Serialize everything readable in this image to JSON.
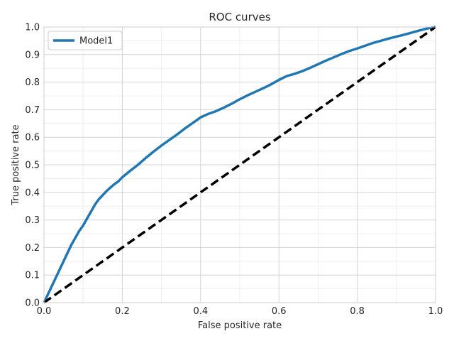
{
  "chart_data": {
    "type": "line",
    "title": "ROC curves",
    "xlabel": "False positive rate",
    "ylabel": "True positive rate",
    "xlim": [
      0.0,
      1.0
    ],
    "ylim": [
      0.0,
      1.0
    ],
    "x_ticks": [
      "0.0",
      "0.2",
      "0.4",
      "0.6",
      "0.8",
      "1.0"
    ],
    "y_ticks": [
      "0.0",
      "0.1",
      "0.2",
      "0.3",
      "0.4",
      "0.5",
      "0.6",
      "0.7",
      "0.8",
      "0.9",
      "1.0"
    ],
    "grid": true,
    "legend_position": "top-left",
    "series": [
      {
        "name": "Model1",
        "color": "#1f77b4",
        "style": "solid",
        "x": [
          0.0,
          0.01,
          0.02,
          0.03,
          0.04,
          0.05,
          0.06,
          0.07,
          0.08,
          0.09,
          0.1,
          0.11,
          0.12,
          0.13,
          0.14,
          0.15,
          0.16,
          0.17,
          0.18,
          0.19,
          0.2,
          0.22,
          0.24,
          0.26,
          0.28,
          0.3,
          0.32,
          0.34,
          0.36,
          0.38,
          0.4,
          0.42,
          0.44,
          0.46,
          0.48,
          0.5,
          0.52,
          0.54,
          0.56,
          0.58,
          0.6,
          0.62,
          0.64,
          0.66,
          0.68,
          0.7,
          0.72,
          0.74,
          0.76,
          0.78,
          0.8,
          0.82,
          0.84,
          0.86,
          0.88,
          0.9,
          0.92,
          0.94,
          0.96,
          0.98,
          1.0
        ],
        "y": [
          0.0,
          0.03,
          0.06,
          0.09,
          0.12,
          0.15,
          0.18,
          0.21,
          0.235,
          0.26,
          0.28,
          0.305,
          0.33,
          0.355,
          0.375,
          0.39,
          0.405,
          0.418,
          0.43,
          0.44,
          0.455,
          0.478,
          0.5,
          0.525,
          0.548,
          0.57,
          0.59,
          0.61,
          0.632,
          0.652,
          0.672,
          0.685,
          0.695,
          0.708,
          0.722,
          0.738,
          0.752,
          0.765,
          0.778,
          0.792,
          0.808,
          0.822,
          0.83,
          0.84,
          0.852,
          0.865,
          0.878,
          0.89,
          0.902,
          0.913,
          0.922,
          0.932,
          0.942,
          0.95,
          0.958,
          0.965,
          0.972,
          0.98,
          0.988,
          0.995,
          1.0
        ]
      },
      {
        "name": "",
        "color": "#000000",
        "style": "dashed",
        "x": [
          0.0,
          1.0
        ],
        "y": [
          0.0,
          1.0
        ]
      }
    ]
  }
}
